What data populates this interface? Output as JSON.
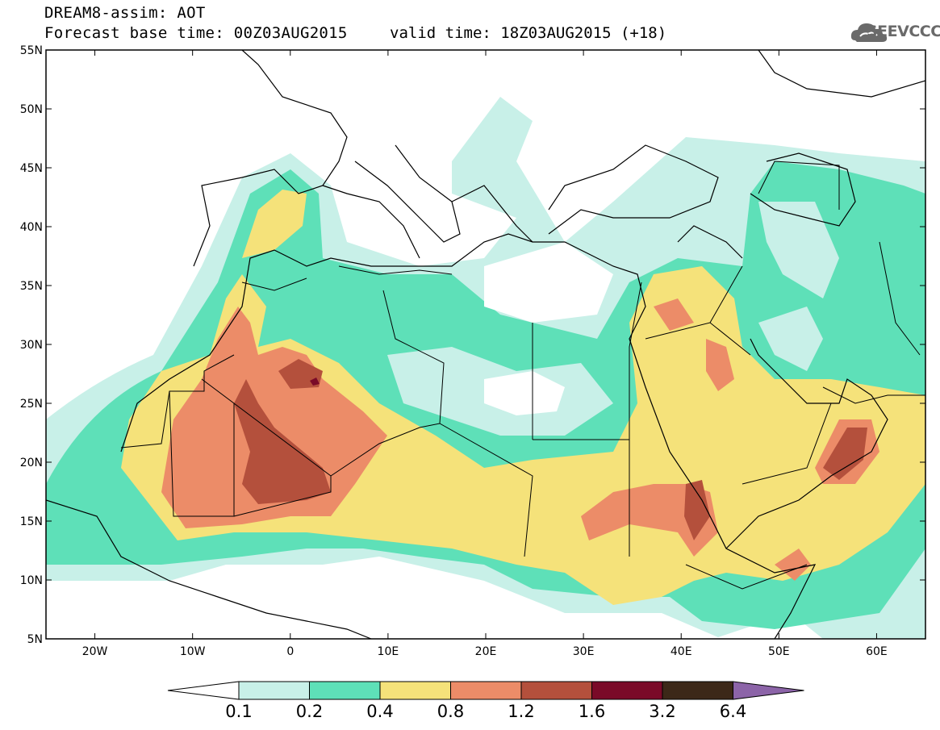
{
  "header": {
    "title_line1": "DREAM8-assim: AOT",
    "title_line2": "Forecast base time: 00Z03AUG2015",
    "valid_time": "valid time: 18Z03AUG2015 (+18)",
    "logo_text": "SEEVCCC"
  },
  "map": {
    "lat_labels": [
      "55N",
      "50N",
      "45N",
      "40N",
      "35N",
      "30N",
      "25N",
      "20N",
      "15N",
      "10N",
      "5N"
    ],
    "lon_labels": [
      "20W",
      "10W",
      "0",
      "10E",
      "20E",
      "30E",
      "40E",
      "50E",
      "60E"
    ],
    "lat_range": [
      5,
      55
    ],
    "lon_range": [
      -25,
      65
    ]
  },
  "colorbar": {
    "labels": [
      "0.1",
      "0.2",
      "0.4",
      "0.8",
      "1.2",
      "1.6",
      "3.2",
      "6.4"
    ],
    "colors": [
      "#ffffff",
      "#c8f0e8",
      "#5ee0b8",
      "#f5e27a",
      "#ec8c68",
      "#b4503c",
      "#7a0a28",
      "#3c2818",
      "#8c64a8"
    ]
  }
}
